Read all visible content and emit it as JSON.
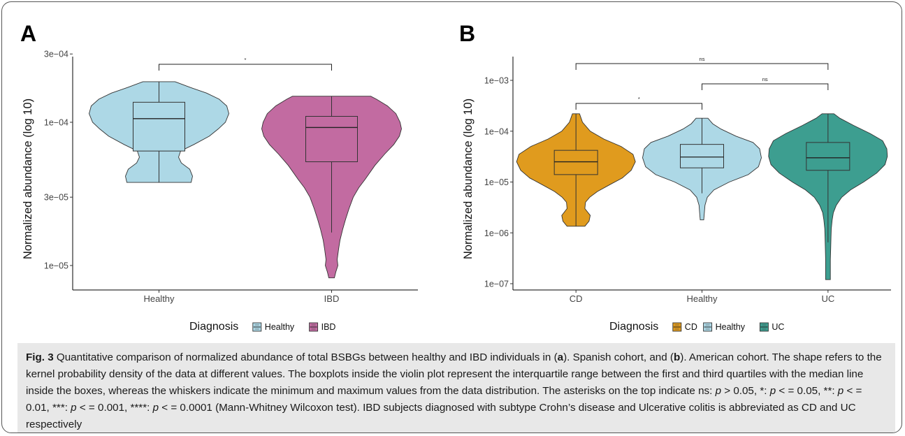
{
  "chart_data": [
    {
      "panel": "A",
      "type": "violin",
      "ylabel": "Normalized abundance (log 10)",
      "yscale": "log",
      "ylim": [
        8e-06,
        0.0003
      ],
      "yticks": [
        1e-05,
        3e-05,
        0.0001,
        0.0003
      ],
      "ytick_labels": [
        "1e−05",
        "3e−05",
        "1e−04",
        "3e−04"
      ],
      "categories": [
        "Healthy",
        "IBD"
      ],
      "groups": [
        {
          "name": "Healthy",
          "color": "#add8e6",
          "min": 3.8e-05,
          "q1": 6.3e-05,
          "median": 0.000106,
          "q3": 0.000138,
          "max": 0.000192,
          "density": [
            [
              3.8e-05,
              0.46
            ],
            [
              4.2e-05,
              0.48
            ],
            [
              4.7e-05,
              0.44
            ],
            [
              5.2e-05,
              0.32
            ],
            [
              5.7e-05,
              0.28
            ],
            [
              6.3e-05,
              0.31
            ],
            [
              7e-05,
              0.5
            ],
            [
              8e-05,
              0.72
            ],
            [
              9e-05,
              0.85
            ],
            [
              0.0001,
              0.95
            ],
            [
              0.000115,
              1.0
            ],
            [
              0.00013,
              0.97
            ],
            [
              0.000145,
              0.86
            ],
            [
              0.00016,
              0.68
            ],
            [
              0.000175,
              0.45
            ],
            [
              0.000192,
              0.23
            ]
          ]
        },
        {
          "name": "IBD",
          "color": "#c26ba1",
          "min": 1.7e-05,
          "q1": 5.3e-05,
          "median": 9.2e-05,
          "q3": 0.00011,
          "max": 0.000152,
          "density": [
            [
              8.2e-06,
              0.04
            ],
            [
              9e-06,
              0.06
            ],
            [
              1e-05,
              0.09
            ],
            [
              1.1e-05,
              0.08
            ],
            [
              1.3e-05,
              0.1
            ],
            [
              1.5e-05,
              0.12
            ],
            [
              1.8e-05,
              0.16
            ],
            [
              2.1e-05,
              0.2
            ],
            [
              2.5e-05,
              0.25
            ],
            [
              3e-05,
              0.31
            ],
            [
              3.5e-05,
              0.39
            ],
            [
              4e-05,
              0.48
            ],
            [
              5e-05,
              0.62
            ],
            [
              6e-05,
              0.76
            ],
            [
              7e-05,
              0.89
            ],
            [
              8e-05,
              0.97
            ],
            [
              9e-05,
              1.0
            ],
            [
              0.0001,
              0.98
            ],
            [
              0.000115,
              0.92
            ],
            [
              0.00013,
              0.8
            ],
            [
              0.000145,
              0.64
            ],
            [
              0.000152,
              0.56
            ]
          ]
        }
      ],
      "comparisons": [
        {
          "from": "Healthy",
          "to": "IBD",
          "label": "*"
        }
      ],
      "legend": {
        "title": "Diagnosis",
        "items": [
          "Healthy",
          "IBD"
        ]
      }
    },
    {
      "panel": "B",
      "type": "violin",
      "ylabel": "Normalized abundance (log 10)",
      "yscale": "log",
      "ylim": [
        8e-08,
        0.003
      ],
      "yticks": [
        1e-07,
        1e-06,
        1e-05,
        0.0001,
        0.001
      ],
      "ytick_labels": [
        "1e−07",
        "1e−06",
        "1e−05",
        "1e−04",
        "1e−03"
      ],
      "categories": [
        "CD",
        "Healthy",
        "UC"
      ],
      "groups": [
        {
          "name": "CD",
          "color": "#e09b1e",
          "min": 1.35e-06,
          "q1": 1.4e-05,
          "median": 2.5e-05,
          "q3": 4.2e-05,
          "max": 0.00022,
          "density": [
            [
              1.35e-06,
              0.15
            ],
            [
              1.7e-06,
              0.22
            ],
            [
              2.2e-06,
              0.24
            ],
            [
              3e-06,
              0.15
            ],
            [
              4e-06,
              0.16
            ],
            [
              5e-06,
              0.23
            ],
            [
              6.5e-06,
              0.36
            ],
            [
              9e-06,
              0.58
            ],
            [
              1.2e-05,
              0.78
            ],
            [
              1.7e-05,
              0.93
            ],
            [
              2.5e-05,
              1.0
            ],
            [
              3.5e-05,
              0.96
            ],
            [
              5e-05,
              0.76
            ],
            [
              7e-05,
              0.47
            ],
            [
              0.0001,
              0.24
            ],
            [
              0.00015,
              0.11
            ],
            [
              0.00022,
              0.06
            ]
          ]
        },
        {
          "name": "Healthy",
          "color": "#add8e6",
          "min": 6e-06,
          "q1": 1.9e-05,
          "median": 3.1e-05,
          "q3": 5.5e-05,
          "max": 0.00018,
          "density": [
            [
              1.8e-06,
              0.03
            ],
            [
              2.5e-06,
              0.04
            ],
            [
              3.5e-06,
              0.05
            ],
            [
              5e-06,
              0.09
            ],
            [
              7e-06,
              0.2
            ],
            [
              1e-05,
              0.46
            ],
            [
              1.4e-05,
              0.78
            ],
            [
              2e-05,
              0.95
            ],
            [
              3e-05,
              1.0
            ],
            [
              4.5e-05,
              0.97
            ],
            [
              6e-05,
              0.86
            ],
            [
              8e-05,
              0.57
            ],
            [
              0.00011,
              0.32
            ],
            [
              0.00014,
              0.18
            ],
            [
              0.00018,
              0.1
            ]
          ]
        },
        {
          "name": "UC",
          "color": "#3d9e90",
          "min": 6.5e-07,
          "q1": 1.7e-05,
          "median": 3e-05,
          "q3": 6e-05,
          "max": 0.00022,
          "density": [
            [
              1.2e-07,
              0.04
            ],
            [
              2e-07,
              0.04
            ],
            [
              3e-07,
              0.04
            ],
            [
              5e-07,
              0.045
            ],
            [
              8e-07,
              0.05
            ],
            [
              1.2e-06,
              0.055
            ],
            [
              1.8e-06,
              0.07
            ],
            [
              2.5e-06,
              0.09
            ],
            [
              3.5e-06,
              0.14
            ],
            [
              5e-06,
              0.23
            ],
            [
              7e-06,
              0.38
            ],
            [
              1e-05,
              0.6
            ],
            [
              1.5e-05,
              0.82
            ],
            [
              2.2e-05,
              0.96
            ],
            [
              3.2e-05,
              1.0
            ],
            [
              4.5e-05,
              0.99
            ],
            [
              6.5e-05,
              0.92
            ],
            [
              9e-05,
              0.71
            ],
            [
              0.00013,
              0.43
            ],
            [
              0.00018,
              0.2
            ],
            [
              0.00022,
              0.1
            ]
          ]
        }
      ],
      "comparisons": [
        {
          "from": "CD",
          "to": "Healthy",
          "label": "*"
        },
        {
          "from": "CD",
          "to": "UC",
          "label": "ns"
        },
        {
          "from": "Healthy",
          "to": "UC",
          "label": "ns"
        }
      ],
      "legend": {
        "title": "Diagnosis",
        "items": [
          "CD",
          "Healthy",
          "UC"
        ]
      }
    }
  ],
  "caption": {
    "lead": "Fig. 3",
    "parts": [
      " Quantitative comparison of normalized abundance of total BSBGs between healthy and IBD individuals in (",
      {
        "b": "a"
      },
      "). Spanish cohort, and (",
      {
        "b": "b"
      },
      "). American cohort. The shape refers to the kernel probability density of the data at different values. The boxplots inside the violin plot represent the interquartile range between the first and third quartiles with the median line inside the boxes, whereas the whiskers indicate the minimum and maximum values from the data distribution. The asterisks on the top indicate ns: ",
      {
        "i": "p"
      },
      " > 0.05, *: ",
      {
        "i": "p"
      },
      " < = 0.05, **: ",
      {
        "i": "p"
      },
      " < = 0.01, ***: ",
      {
        "i": "p"
      },
      " < = 0.001, ****: ",
      {
        "i": "p"
      },
      " < = 0.0001 (Mann-Whitney Wilcoxon test). IBD subjects diagnosed with subtype Crohn’s disease and Ulcerative colitis is abbreviated as CD and UC respectively"
    ]
  }
}
